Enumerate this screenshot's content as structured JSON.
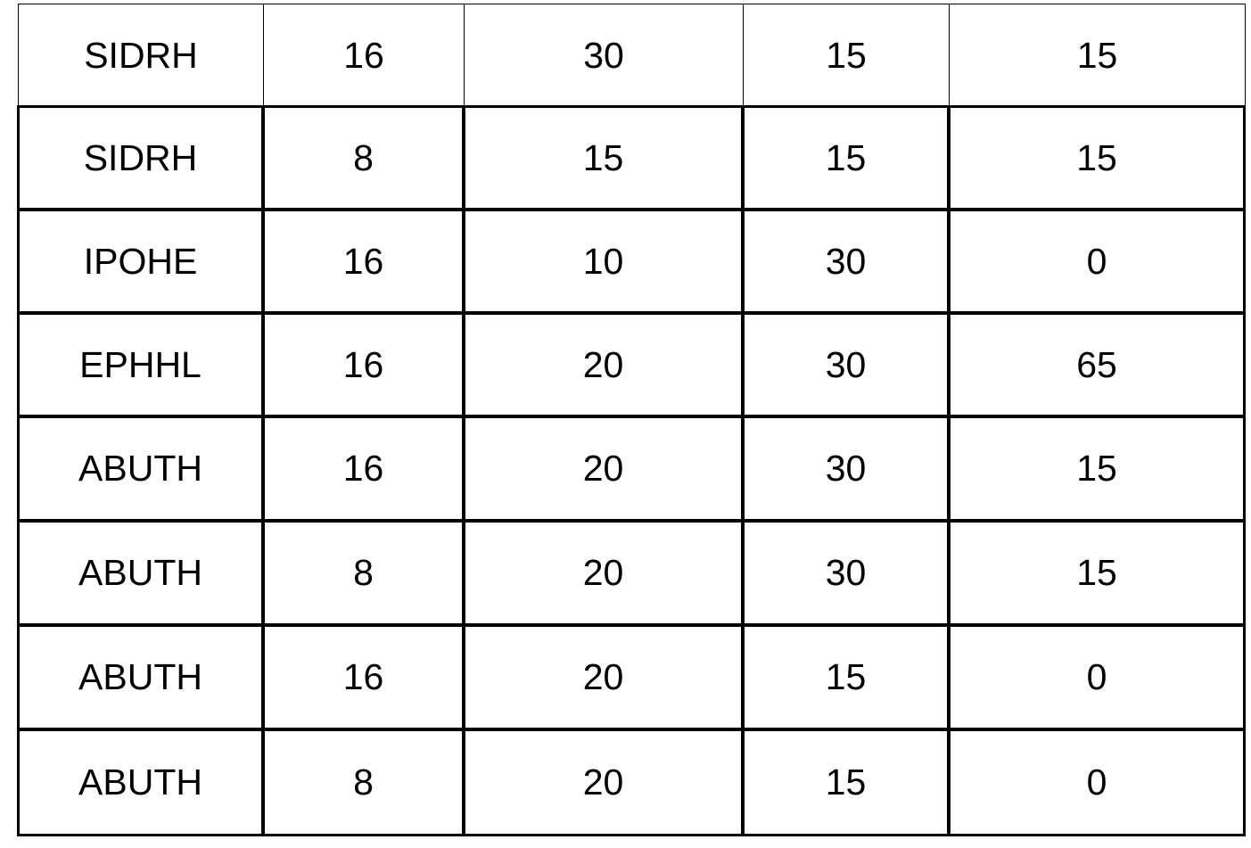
{
  "table": {
    "rows": [
      [
        "SIDRH",
        "16",
        "30",
        "15",
        "15"
      ],
      [
        "SIDRH",
        "8",
        "15",
        "15",
        "15"
      ],
      [
        "IPOHE",
        "16",
        "10",
        "30",
        "0"
      ],
      [
        "EPHHL",
        "16",
        "20",
        "30",
        "65"
      ],
      [
        "ABUTH",
        "16",
        "20",
        "30",
        "15"
      ],
      [
        "ABUTH",
        "8",
        "20",
        "30",
        "15"
      ],
      [
        "ABUTH",
        "16",
        "20",
        "15",
        "0"
      ],
      [
        "ABUTH",
        "8",
        "20",
        "15",
        "0"
      ]
    ]
  }
}
